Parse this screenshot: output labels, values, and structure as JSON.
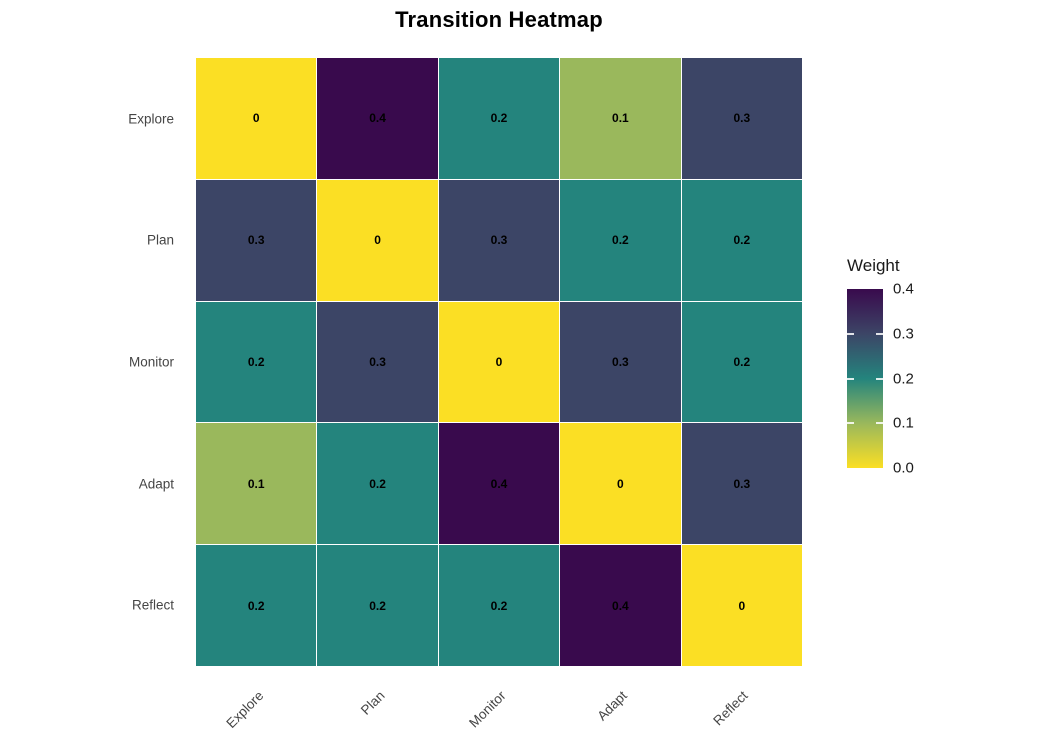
{
  "chart_data": {
    "type": "heatmap",
    "title": "Transition Heatmap",
    "rows": [
      "Explore",
      "Plan",
      "Monitor",
      "Adapt",
      "Reflect"
    ],
    "columns": [
      "Explore",
      "Plan",
      "Monitor",
      "Adapt",
      "Reflect"
    ],
    "matrix": [
      [
        0,
        0.4,
        0.2,
        0.1,
        0.3
      ],
      [
        0.3,
        0,
        0.3,
        0.2,
        0.2
      ],
      [
        0.2,
        0.3,
        0,
        0.3,
        0.2
      ],
      [
        0.1,
        0.2,
        0.4,
        0,
        0.3
      ],
      [
        0.2,
        0.2,
        0.2,
        0.4,
        0
      ]
    ],
    "cell_labels": [
      [
        "0",
        "0.4",
        "0.2",
        "0.1",
        "0.3"
      ],
      [
        "0.3",
        "0",
        "0.3",
        "0.2",
        "0.2"
      ],
      [
        "0.2",
        "0.3",
        "0",
        "0.3",
        "0.2"
      ],
      [
        "0.1",
        "0.2",
        "0.4",
        "0",
        "0.3"
      ],
      [
        "0.2",
        "0.2",
        "0.2",
        "0.4",
        "0"
      ]
    ],
    "value_colors": {
      "0": "#FBDF24",
      "0.1": "#9AB85C",
      "0.2": "#24847D",
      "0.3": "#3C4566",
      "0.4": "#390A4D"
    },
    "legend": {
      "title": "Weight",
      "position": "right",
      "range": [
        0.0,
        0.4
      ],
      "tick_labels": [
        "0.4",
        "0.3",
        "0.2",
        "0.1",
        "0.0"
      ],
      "gradient_top_to_bottom": [
        "#390A4D",
        "#3C4566",
        "#24847D",
        "#9AB85C",
        "#FBDF24"
      ]
    },
    "grid_line_color": "#FFFFFF",
    "background": "#FFFFFF"
  }
}
